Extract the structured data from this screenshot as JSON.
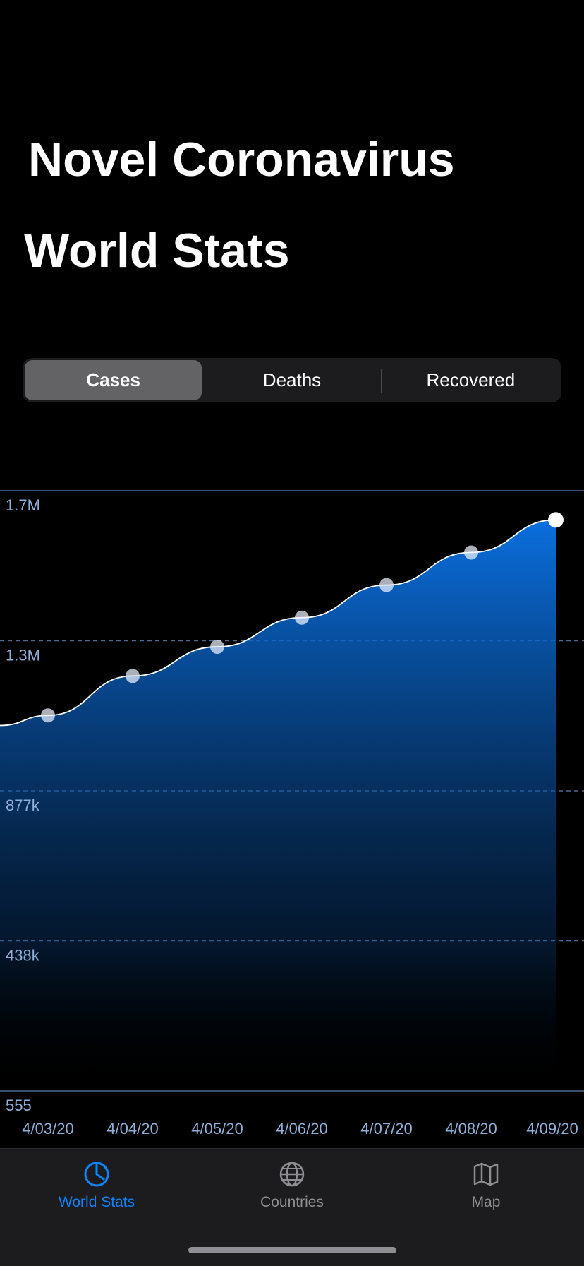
{
  "app_title": "Novel Coronavirus",
  "page_title": "World Stats",
  "segments": [
    {
      "label": "Cases",
      "selected": true
    },
    {
      "label": "Deaths",
      "selected": false
    },
    {
      "label": "Recovered",
      "selected": false
    }
  ],
  "chart_data": {
    "type": "area",
    "title": "",
    "xlabel": "",
    "ylabel": "",
    "categories": [
      "4/03/20",
      "4/04/20",
      "4/05/20",
      "4/06/20",
      "4/07/20",
      "4/08/20",
      "4/09/20"
    ],
    "series": [
      {
        "values": [
          1095000,
          1210000,
          1295000,
          1380000,
          1475000,
          1570000,
          1665000
        ]
      }
    ],
    "y_tick_labels": [
      "1.7M",
      "1.3M",
      "877k",
      "438k",
      "555"
    ],
    "ylim": [
      555,
      1750000
    ],
    "grid": "horizontal dashed",
    "colors": {
      "line": "#ffffff",
      "fill_top": "#0a6fdf",
      "fill_bottom": "#000000",
      "axis_text": "#8fb0d8"
    }
  },
  "tabbar": {
    "items": [
      {
        "label": "World Stats",
        "icon": "pie-chart-icon",
        "active": true
      },
      {
        "label": "Countries",
        "icon": "globe-icon",
        "active": false
      },
      {
        "label": "Map",
        "icon": "map-icon",
        "active": false
      }
    ]
  },
  "colors": {
    "background": "#000000",
    "accent": "#0a84ff",
    "tabbar_bg": "#1c1c1e",
    "segment_bg": "#1c1c1e",
    "segment_active": "#636366"
  }
}
